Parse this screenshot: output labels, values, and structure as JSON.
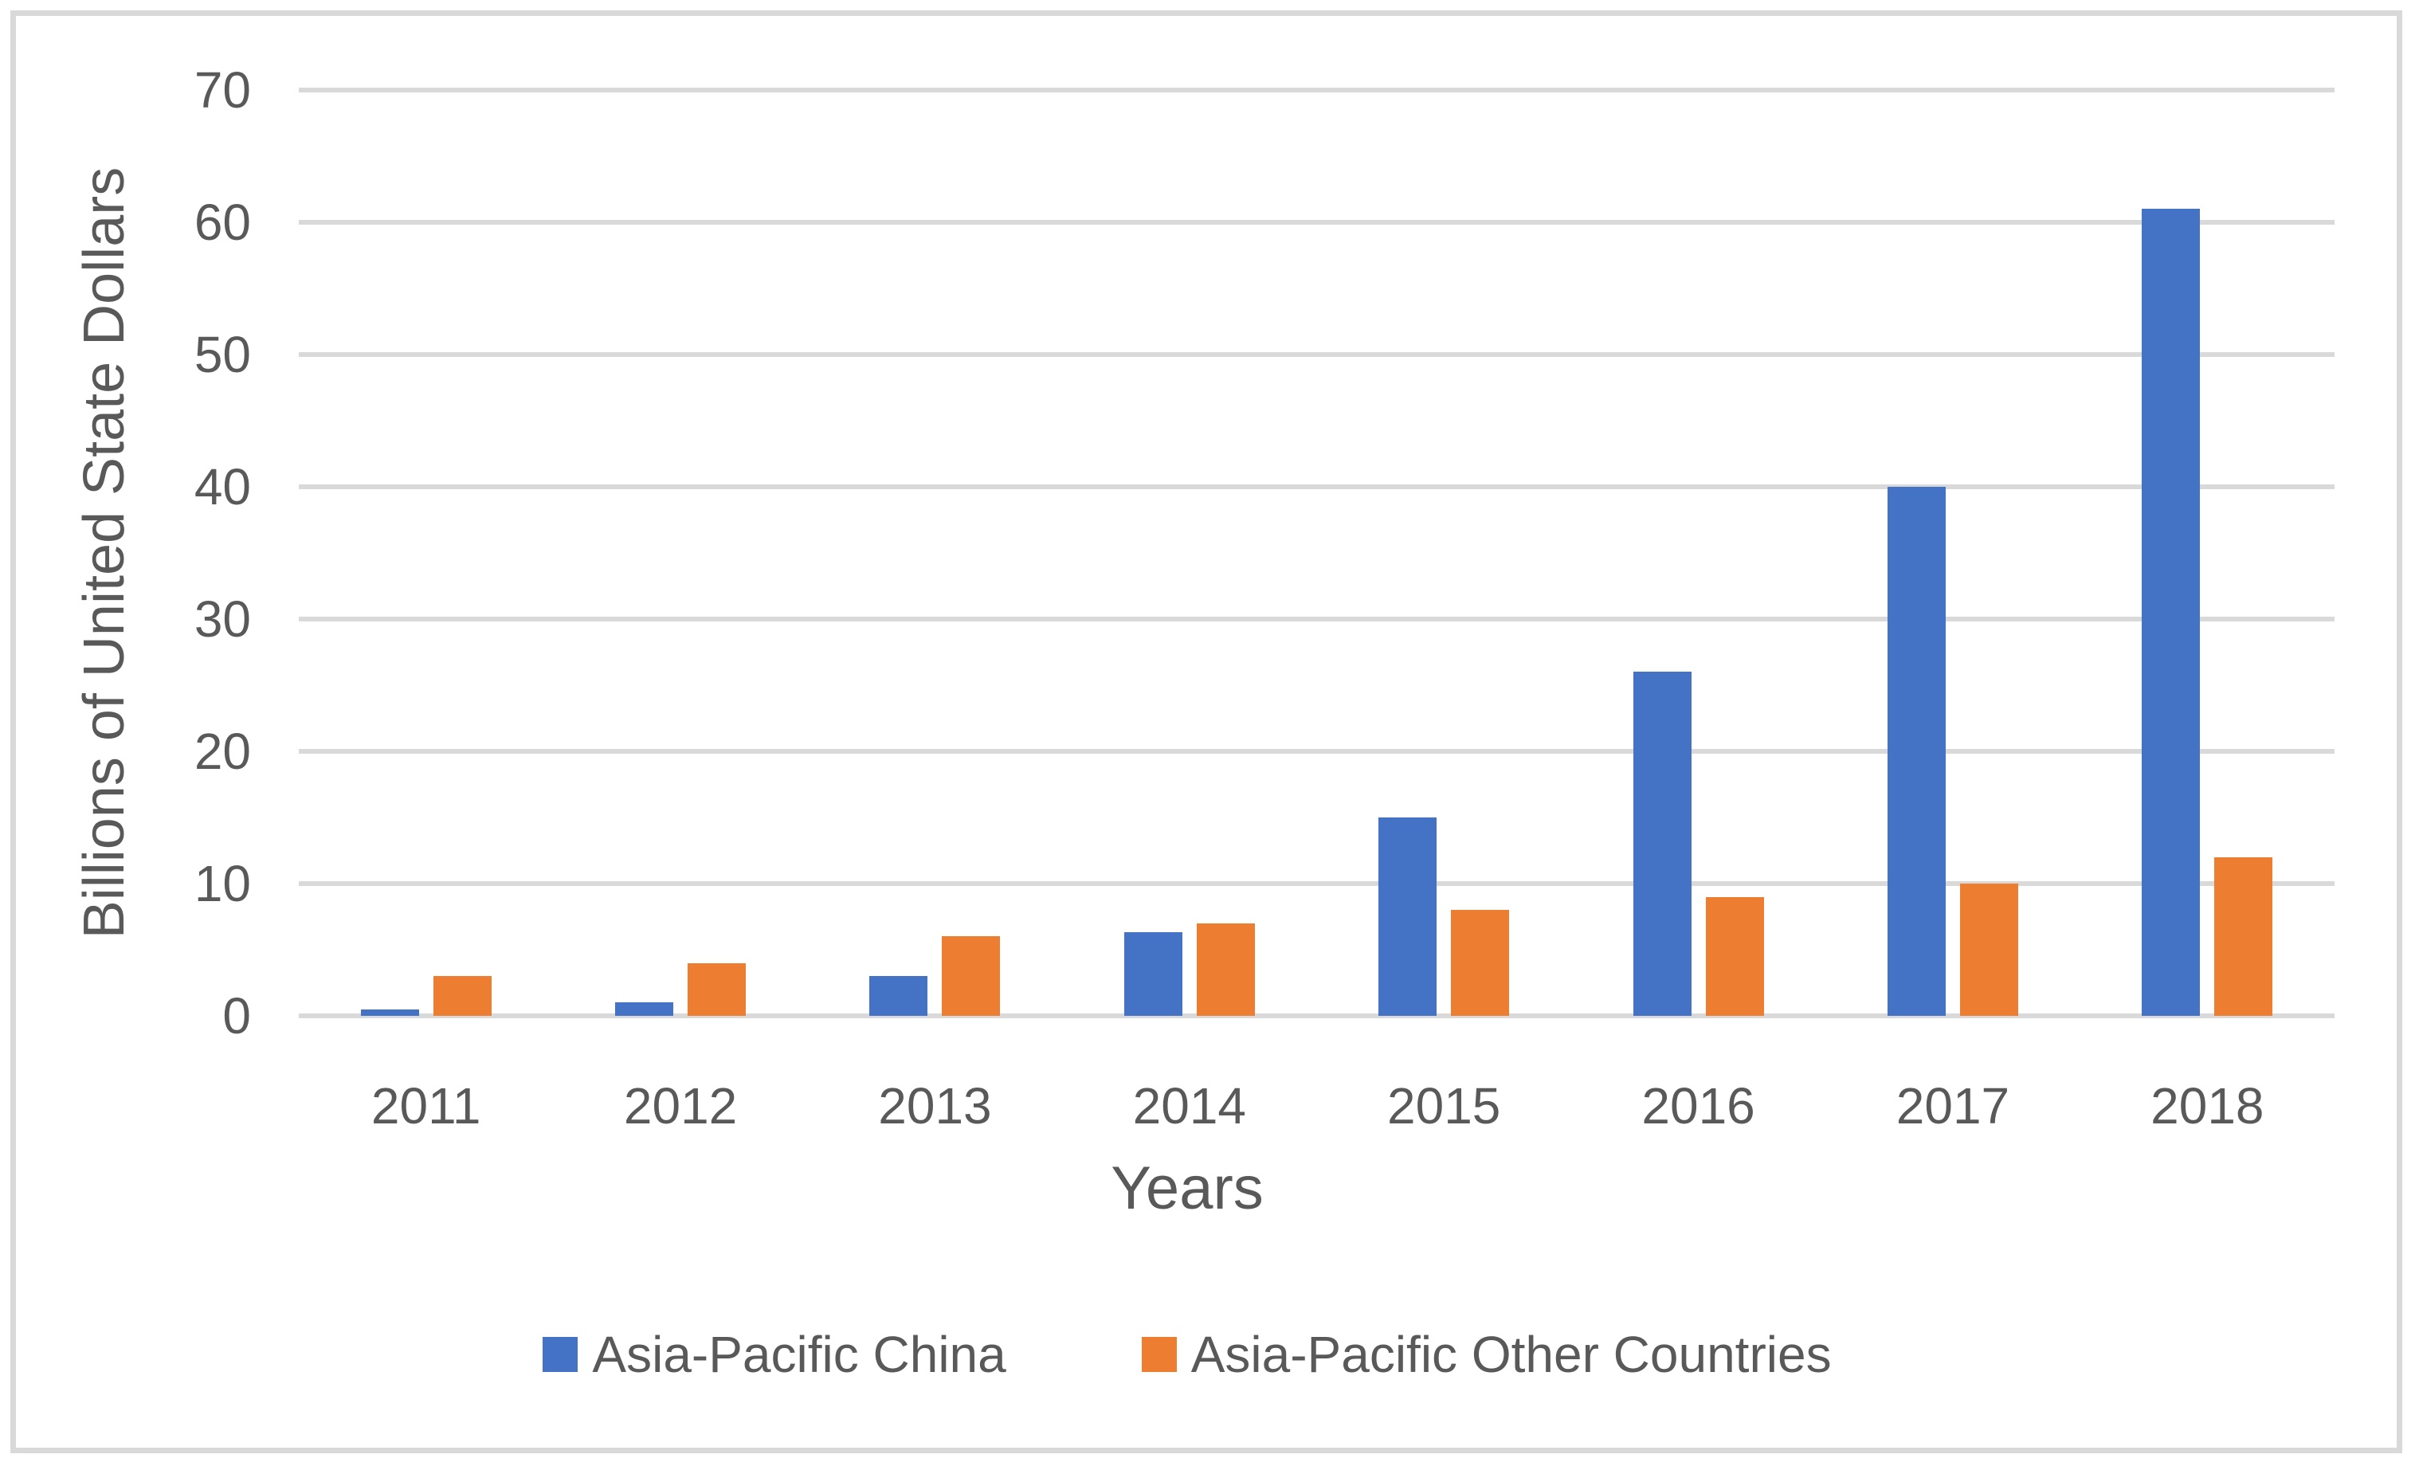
{
  "chart_data": {
    "type": "bar",
    "title": "",
    "categories": [
      "2011",
      "2012",
      "2013",
      "2014",
      "2015",
      "2016",
      "2017",
      "2018"
    ],
    "series": [
      {
        "name": "Asia-Pacific China",
        "color": "#4472C4",
        "values": [
          0.5,
          1,
          3,
          6.3,
          15,
          26,
          40,
          61
        ]
      },
      {
        "name": "Asia-Pacific Other Countries",
        "color": "#ED7D31",
        "values": [
          3,
          4,
          6,
          7,
          8,
          9,
          10,
          12
        ]
      }
    ],
    "xlabel": "Years",
    "ylabel": "Billions of United State Dollars",
    "ylim": [
      0,
      70
    ],
    "yticks": [
      "0",
      "10",
      "20",
      "30",
      "40",
      "50",
      "60",
      "70"
    ],
    "grid": true,
    "legend_position": "bottom"
  },
  "style": {
    "gridline_color": "#D9D9D9",
    "axis_text_color": "#595959",
    "border_color": "#D9D9D9",
    "background_color": "#FFFFFF"
  }
}
